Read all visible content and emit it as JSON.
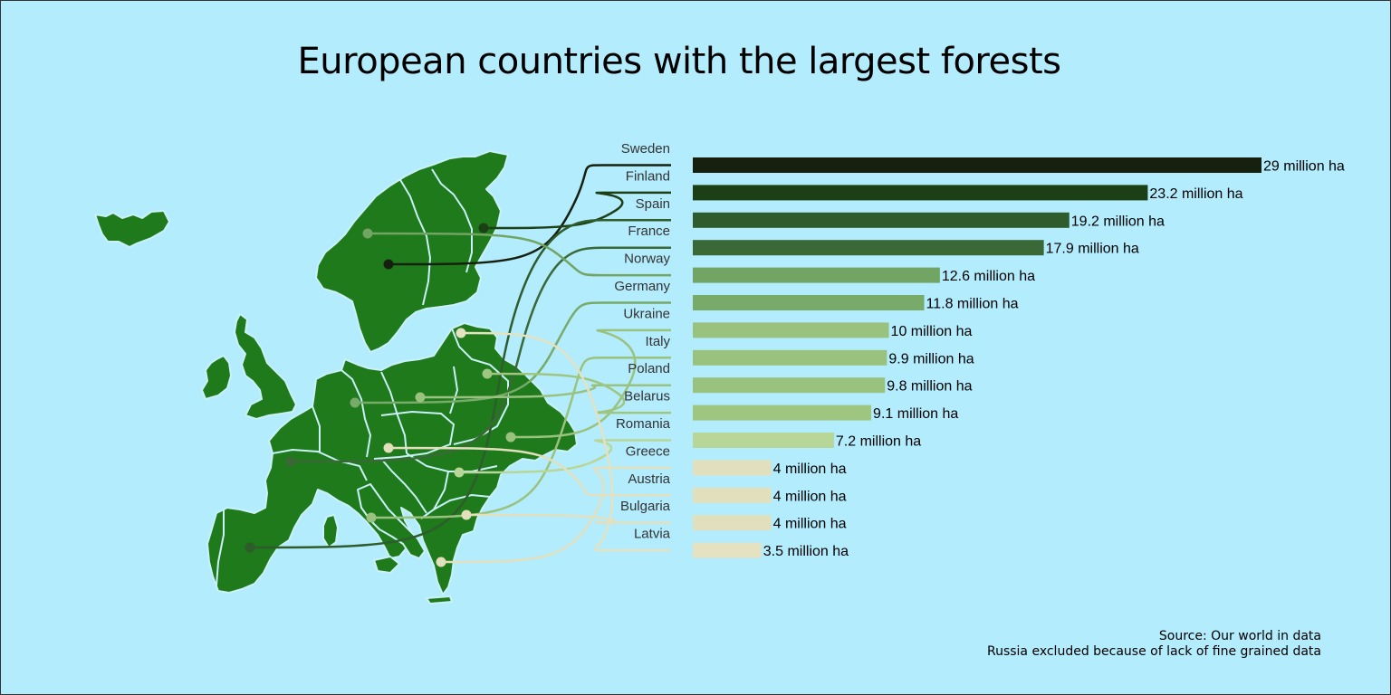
{
  "chart_data": {
    "type": "bar",
    "orientation": "horizontal",
    "title": "European countries with the largest forests",
    "categories": [
      "Sweden",
      "Finland",
      "Spain",
      "France",
      "Norway",
      "Germany",
      "Ukraine",
      "Italy",
      "Poland",
      "Belarus",
      "Romania",
      "Greece",
      "Austria",
      "Bulgaria",
      "Latvia"
    ],
    "values": [
      29,
      23.2,
      19.2,
      17.9,
      12.6,
      11.8,
      10,
      9.9,
      9.8,
      9.1,
      7.2,
      4,
      4,
      4,
      3.5
    ],
    "value_labels": [
      "29 million ha",
      "23.2 million ha",
      "19.2 million ha",
      "17.9 million ha",
      "12.6 million ha",
      "11.8 million ha",
      "10 million ha",
      "9.9 million ha",
      "9.8 million ha",
      "9.1 million ha",
      "7.2 million ha",
      "4 million ha",
      "4 million ha",
      "4 million ha",
      "3.5 million ha"
    ],
    "bar_colors": [
      "#16200f",
      "#1c3f16",
      "#2e5c2c",
      "#3a6836",
      "#72a464",
      "#78aa69",
      "#9ac27f",
      "#9ac27f",
      "#9ac27f",
      "#9ec680",
      "#b7d697",
      "#e2dfbd",
      "#e2dfbd",
      "#e2dfbd",
      "#e4e2c0"
    ],
    "grid": false,
    "legend": "none"
  },
  "map": {
    "land_color": "#1f7a1c",
    "border_color": "#c9f1f7"
  },
  "source": {
    "line1": "Source: Our world in data",
    "line2": "Russia excluded because of lack of fine grained data"
  },
  "colors": {
    "background": "#b3ecfd"
  }
}
